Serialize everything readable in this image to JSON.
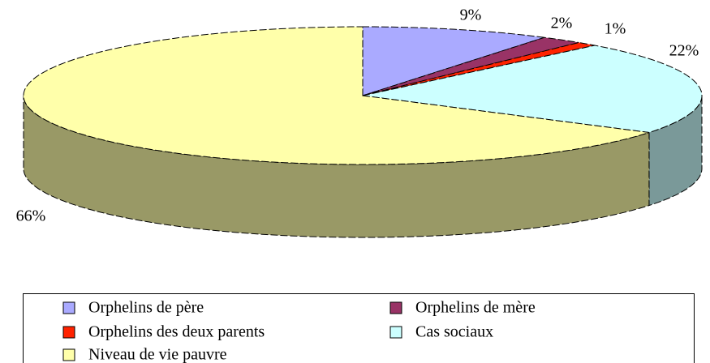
{
  "chart_data": {
    "type": "pie3d",
    "categories": [
      "Orphelins de père",
      "Orphelins de mère",
      "Orphelins des deux parents",
      "Cas sociaux",
      "Niveau de vie pauvre"
    ],
    "values": [
      9,
      2,
      1,
      22,
      66
    ],
    "value_labels": [
      "9%",
      "2%",
      "1%",
      "22%",
      "66%"
    ],
    "colors": [
      "#aaaaff",
      "#993366",
      "#ff2200",
      "#ccffff",
      "#ffffaa"
    ],
    "legend": "bottom"
  }
}
